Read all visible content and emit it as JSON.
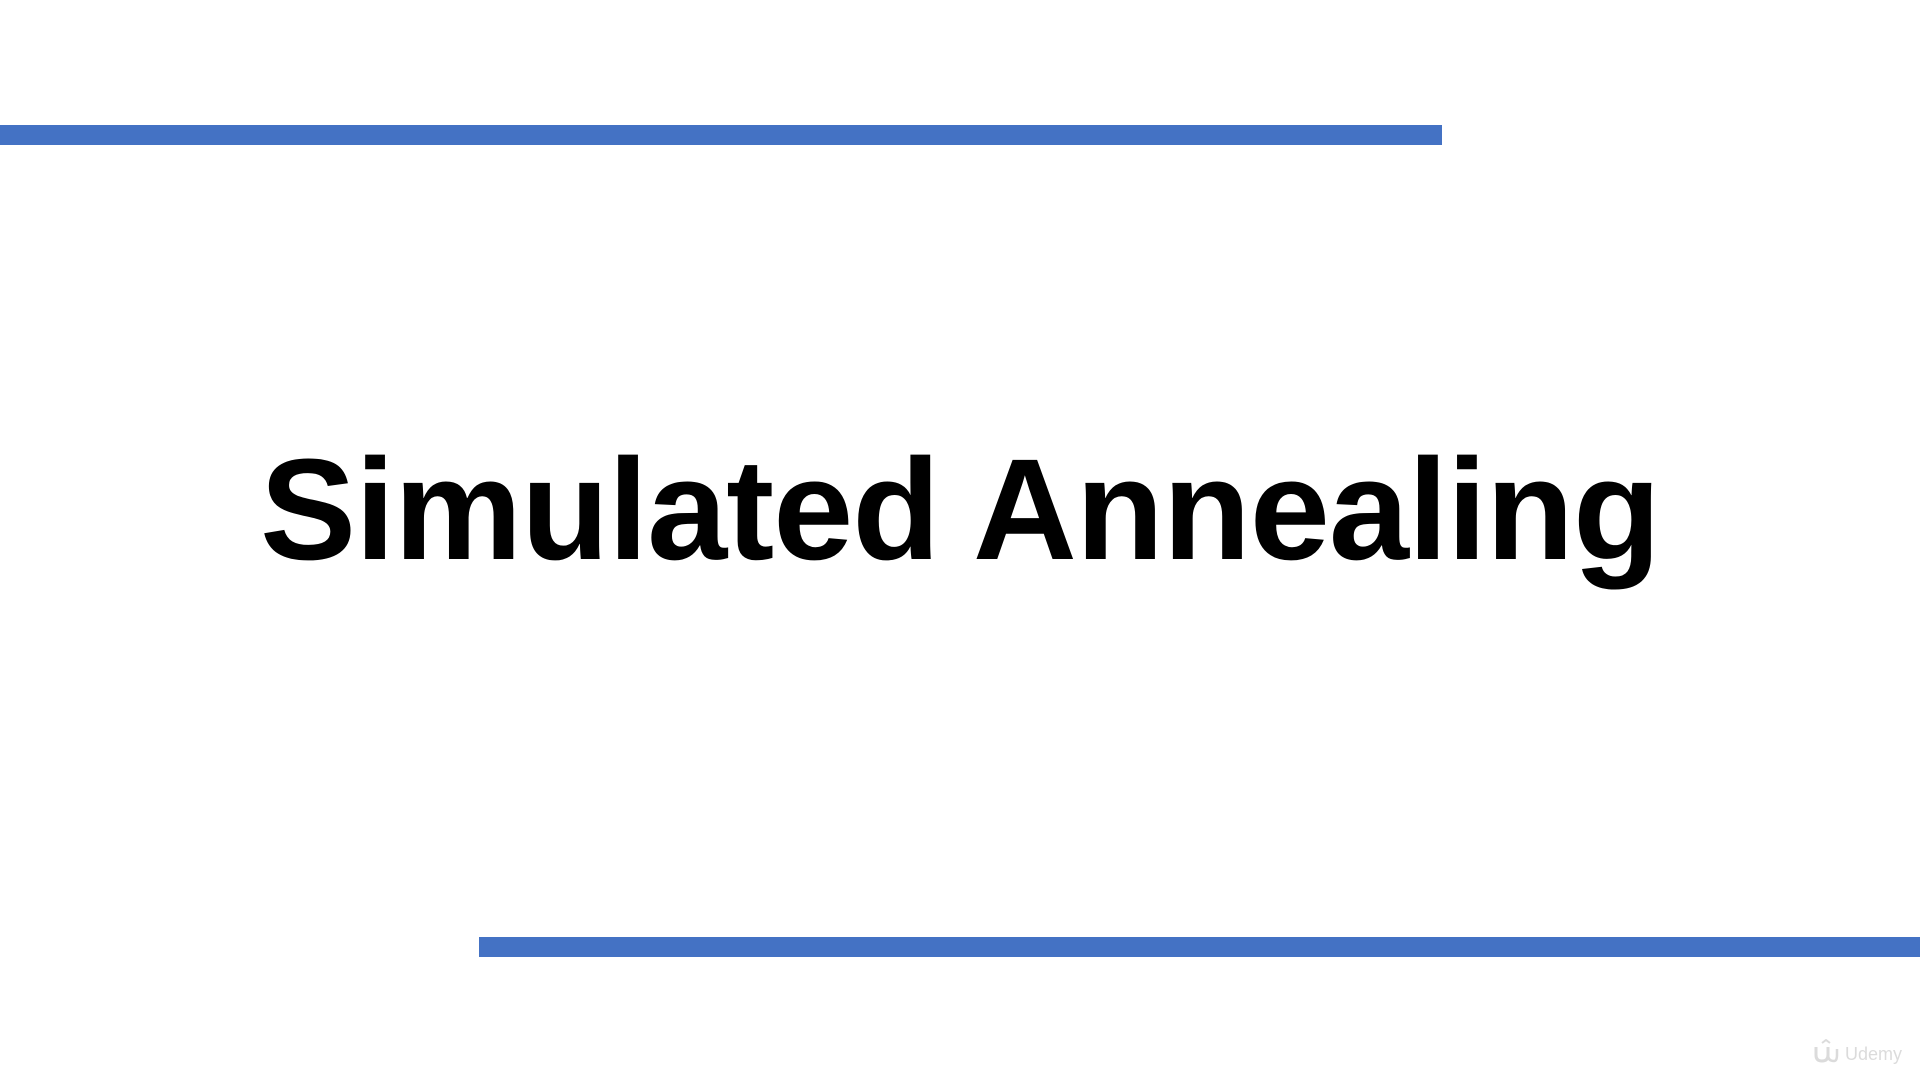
{
  "slide": {
    "title": "Simulated Annealing"
  },
  "watermark": {
    "text": "Udemy",
    "icon": "udemy-logo-icon"
  },
  "colors": {
    "accent_bar": "#4472C4",
    "background": "#FFFFFF",
    "title_text": "#000000"
  }
}
